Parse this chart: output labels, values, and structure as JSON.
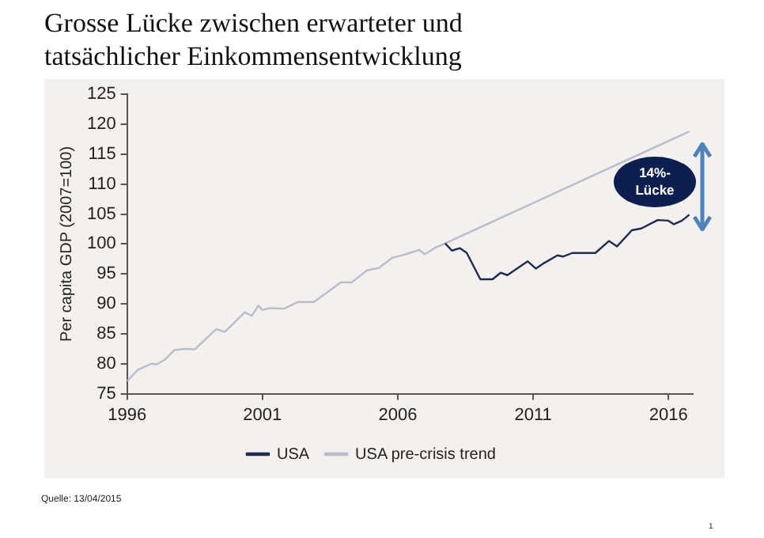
{
  "chart_data": {
    "type": "line",
    "title": "Grosse Lücke zwischen  erwarteter und tatsächlicher  Einkommensentwicklung",
    "ylabel": "Per capita GDP (2007=100)",
    "xlim": [
      1996,
      2016.9
    ],
    "xticks": [
      1996,
      2001,
      2006,
      2011,
      2016
    ],
    "ylim": [
      75,
      125
    ],
    "yticks": [
      75,
      80,
      85,
      90,
      95,
      100,
      105,
      110,
      115,
      120,
      125
    ],
    "grid": false,
    "legend": "bottom",
    "marker": "none",
    "line_style": "solid",
    "series": [
      {
        "name": "USA",
        "color": "#1f2a55",
        "x": [
          2007.75,
          2008.0,
          2008.3,
          2008.55,
          2009.05,
          2009.5,
          2009.8,
          2010.05,
          2010.8,
          2011.1,
          2011.4,
          2011.9,
          2012.1,
          2012.45,
          2013.3,
          2013.8,
          2014.1,
          2014.65,
          2015.0,
          2015.6,
          2016.0,
          2016.2,
          2016.5,
          2016.77
        ],
        "values": [
          100.1,
          98.9,
          99.3,
          98.5,
          94.1,
          94.1,
          95.2,
          94.8,
          97.1,
          95.9,
          96.8,
          98.1,
          97.9,
          98.5,
          98.5,
          100.5,
          99.6,
          102.3,
          102.6,
          104.0,
          103.9,
          103.3,
          103.9,
          104.9
        ]
      },
      {
        "name": "USA pre-crisis trend",
        "color": "#b9bccb",
        "x": [
          1996.0,
          1996.4,
          1996.9,
          1997.1,
          1997.4,
          1997.75,
          1998.2,
          1998.5,
          1998.9,
          1999.3,
          1999.6,
          1999.9,
          2000.35,
          2000.6,
          2000.85,
          2001.0,
          2001.3,
          2001.8,
          2002.3,
          2002.9,
          2003.9,
          2004.3,
          2004.86,
          2005.3,
          2005.8,
          2006.3,
          2006.8,
          2007.0,
          2007.35,
          2007.75,
          2016.77
        ],
        "values": [
          77.1,
          79.0,
          80.0,
          79.9,
          80.7,
          82.3,
          82.5,
          82.4,
          84.1,
          85.8,
          85.3,
          86.6,
          88.6,
          88.0,
          89.7,
          89.0,
          89.3,
          89.2,
          90.3,
          90.3,
          93.6,
          93.6,
          95.6,
          96.0,
          97.7,
          98.3,
          99.0,
          98.3,
          99.3,
          100.1,
          118.8
        ]
      }
    ],
    "annotations": [
      "14%-Lücke",
      "Quelle: 13/04/2015",
      "1"
    ]
  }
}
